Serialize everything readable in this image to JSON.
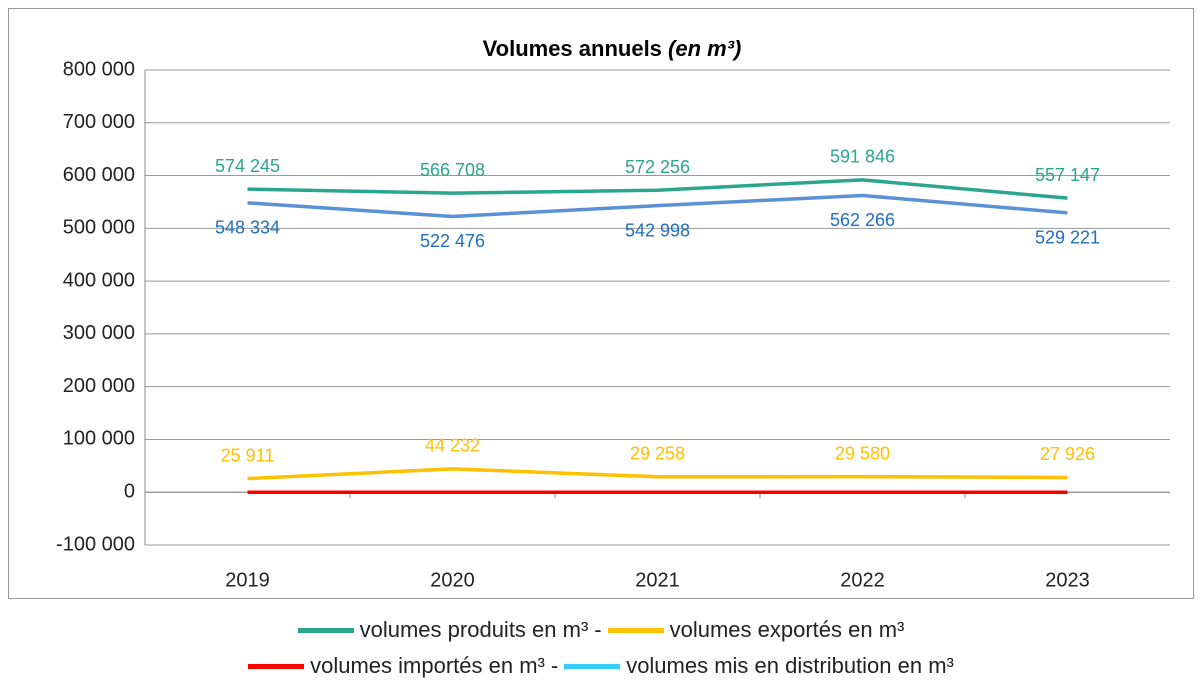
{
  "chart_data": {
    "type": "line",
    "title": "Volumes annuels",
    "title_unit": "(en m³)",
    "categories": [
      "2019",
      "2020",
      "2021",
      "2022",
      "2023"
    ],
    "series": [
      {
        "name": "volumes produits en m³",
        "color": "#2ca58d",
        "values": [
          574245,
          566708,
          572256,
          591846,
          557147
        ],
        "value_labels": [
          "574 245",
          "566 708",
          "572 256",
          "591 846",
          "557 147"
        ],
        "label_position": "above"
      },
      {
        "name": "volumes exportés en m³",
        "color": "#ffc000",
        "values": [
          25911,
          44232,
          29258,
          29580,
          27926
        ],
        "value_labels": [
          "25 911",
          "44 232",
          "29 258",
          "29 580",
          "27 926"
        ],
        "label_position": "above"
      },
      {
        "name": "volumes importés en m³",
        "color": "#ff0000",
        "values": [
          0,
          0,
          0,
          0,
          0
        ]
      },
      {
        "name": "volumes mis en distribution en m³",
        "color": "#5b8fd6",
        "legend_color": "#33ccff",
        "label_color": "#1f6fc0",
        "values": [
          548334,
          522476,
          542998,
          562266,
          529221
        ],
        "value_labels": [
          "548 334",
          "522 476",
          "542 998",
          "562 266",
          "529 221"
        ],
        "label_position": "below"
      }
    ],
    "legend_separator": "-",
    "ylim": [
      -100000,
      800000
    ],
    "yticks": [
      {
        "value": -100000,
        "label": "-100 000"
      },
      0,
      {
        "value": 100000,
        "label": "100 000"
      },
      {
        "value": 200000,
        "label": "200 000"
      },
      {
        "value": 300000,
        "label": "300 000"
      },
      {
        "value": 400000,
        "label": "400 000"
      },
      {
        "value": 500000,
        "label": "500 000"
      },
      {
        "value": 600000,
        "label": "600 000"
      },
      {
        "value": 700000,
        "label": "700 000"
      },
      {
        "value": 800000,
        "label": "800 000"
      }
    ],
    "grid": true
  }
}
